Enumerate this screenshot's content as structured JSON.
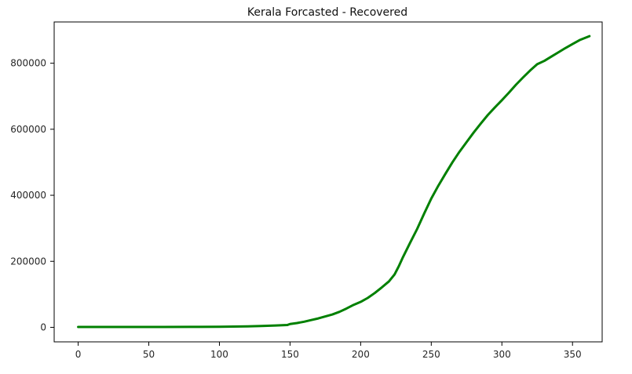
{
  "chart_data": {
    "type": "line",
    "title": "Kerala Forcasted - Recovered",
    "xlabel": "",
    "ylabel": "",
    "xlim": [
      -17,
      371
    ],
    "ylim": [
      -44000,
      925000
    ],
    "x_ticks": [
      0,
      50,
      100,
      150,
      200,
      250,
      300,
      350
    ],
    "y_ticks": [
      0,
      200000,
      400000,
      600000,
      800000
    ],
    "grid": false,
    "series": [
      {
        "color": "#008000",
        "points": [
          [
            0,
            1000
          ],
          [
            20,
            1000
          ],
          [
            40,
            1000
          ],
          [
            60,
            1200
          ],
          [
            80,
            1400
          ],
          [
            100,
            1800
          ],
          [
            110,
            2200
          ],
          [
            120,
            3000
          ],
          [
            130,
            4000
          ],
          [
            140,
            5500
          ],
          [
            148,
            7000
          ],
          [
            150,
            10000
          ],
          [
            155,
            13000
          ],
          [
            160,
            17000
          ],
          [
            165,
            22000
          ],
          [
            170,
            27000
          ],
          [
            175,
            33000
          ],
          [
            180,
            39000
          ],
          [
            185,
            47000
          ],
          [
            190,
            57000
          ],
          [
            195,
            68000
          ],
          [
            200,
            77000
          ],
          [
            205,
            89000
          ],
          [
            210,
            104000
          ],
          [
            215,
            121000
          ],
          [
            220,
            139000
          ],
          [
            224,
            160000
          ],
          [
            227,
            185000
          ],
          [
            230,
            213000
          ],
          [
            235,
            256000
          ],
          [
            240,
            298000
          ],
          [
            245,
            345000
          ],
          [
            250,
            390000
          ],
          [
            255,
            429000
          ],
          [
            260,
            465000
          ],
          [
            265,
            500000
          ],
          [
            270,
            532000
          ],
          [
            275,
            561000
          ],
          [
            280,
            590000
          ],
          [
            285,
            617000
          ],
          [
            290,
            643000
          ],
          [
            295,
            666000
          ],
          [
            300,
            688000
          ],
          [
            305,
            711000
          ],
          [
            310,
            735000
          ],
          [
            315,
            757000
          ],
          [
            320,
            778000
          ],
          [
            325,
            797000
          ],
          [
            330,
            807000
          ],
          [
            335,
            820000
          ],
          [
            340,
            833000
          ],
          [
            345,
            846000
          ],
          [
            350,
            858000
          ],
          [
            355,
            870000
          ],
          [
            362,
            882000
          ]
        ]
      }
    ]
  }
}
